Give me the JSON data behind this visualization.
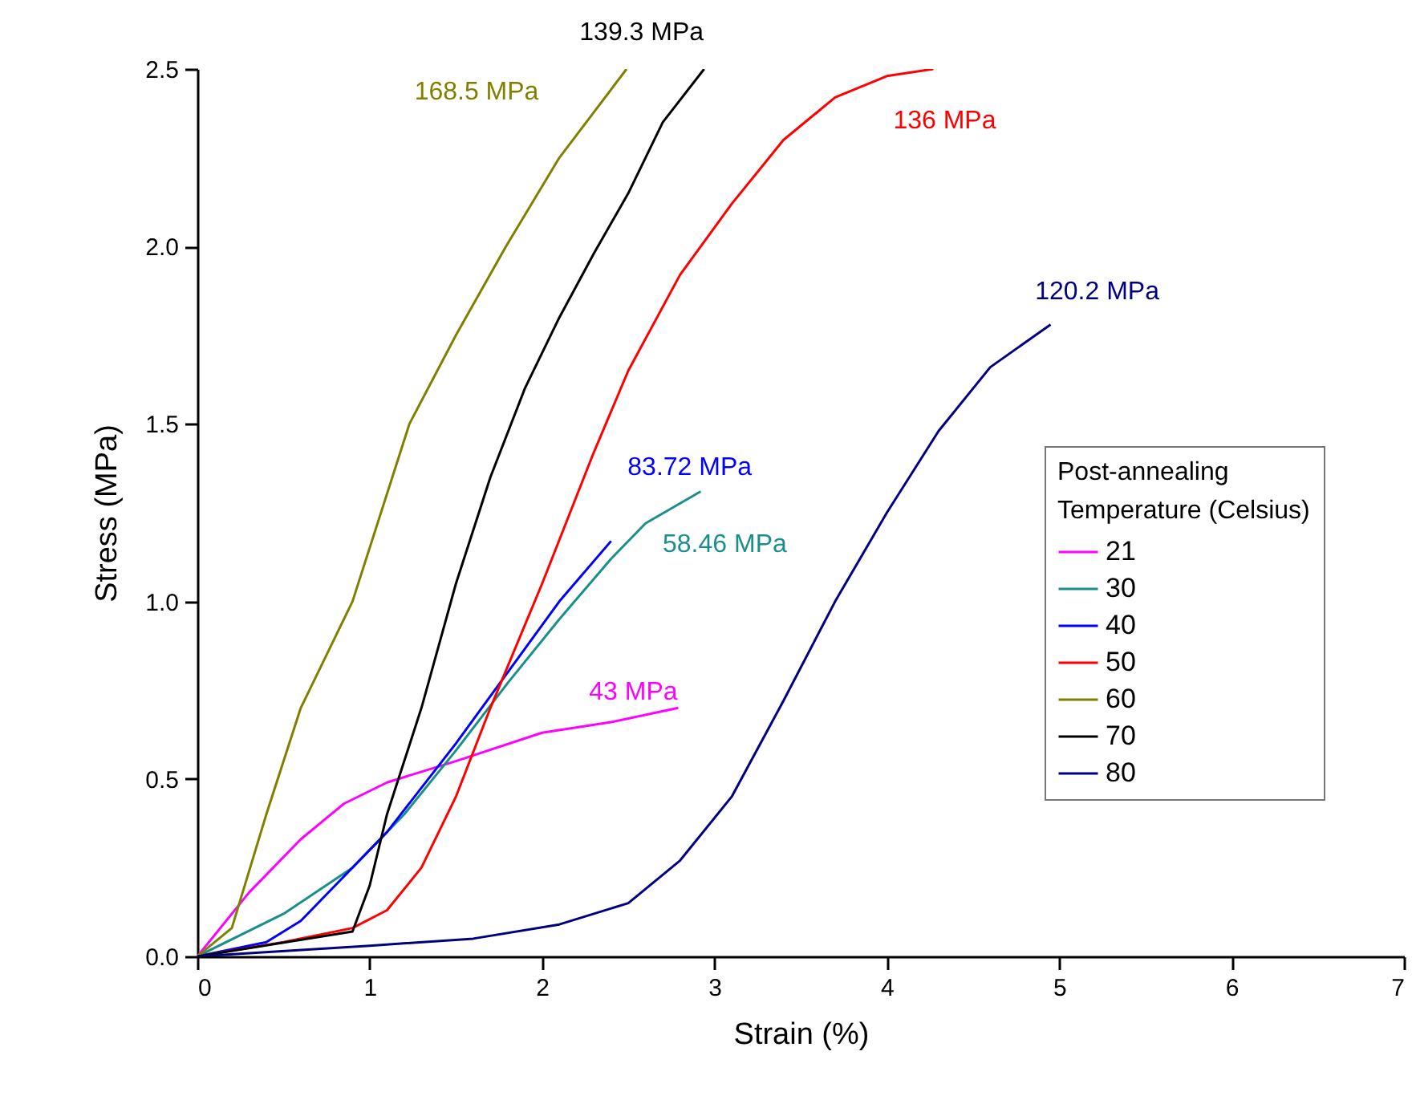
{
  "chart_data": {
    "type": "line",
    "xlabel": "Strain (%)",
    "ylabel": "Stress (MPa)",
    "legend_title": "Post-annealing Temperature (Celsius)",
    "legend": "right",
    "grid": false,
    "marker": "none",
    "line_style": "solid",
    "xlim": [
      0,
      7
    ],
    "xticks": [
      0,
      1,
      2,
      3,
      4,
      5,
      6,
      7
    ],
    "ylim": [
      0,
      2.5
    ],
    "yticks": [
      {
        "value": 0,
        "label": "0.0"
      },
      {
        "value": 0.5,
        "label": "0.5"
      },
      {
        "value": 1,
        "label": "1.0"
      },
      {
        "value": 1.5,
        "label": "1.5"
      },
      {
        "value": 2,
        "label": "2.0"
      },
      {
        "value": 2.5,
        "label": "2.5"
      }
    ],
    "series": [
      {
        "name": "21",
        "color": "#ff00ff",
        "x": [
          0,
          0.3,
          0.6,
          0.85,
          1.1,
          1.5,
          2.0,
          2.4,
          2.79
        ],
        "values": [
          0,
          0.18,
          0.33,
          0.43,
          0.49,
          0.55,
          0.63,
          0.66,
          0.7
        ]
      },
      {
        "name": "30",
        "color": "#1a8f8a",
        "x": [
          0,
          0.5,
          0.9,
          1.2,
          1.5,
          1.8,
          2.1,
          2.4,
          2.6,
          2.92
        ],
        "values": [
          0,
          0.12,
          0.25,
          0.4,
          0.58,
          0.77,
          0.95,
          1.12,
          1.22,
          1.31
        ]
      },
      {
        "name": "40",
        "color": "#0000ff",
        "x": [
          0,
          0.4,
          0.6,
          0.8,
          1.1,
          1.5,
          1.8,
          2.1,
          2.4
        ],
        "values": [
          0,
          0.04,
          0.1,
          0.2,
          0.35,
          0.6,
          0.8,
          1.0,
          1.17
        ]
      },
      {
        "name": "50",
        "color": "#ff0000",
        "x": [
          0,
          0.5,
          0.9,
          1.1,
          1.3,
          1.5,
          1.7,
          2.0,
          2.3,
          2.5,
          2.8,
          3.1,
          3.4,
          3.7,
          4.0,
          4.27
        ],
        "values": [
          0,
          0.04,
          0.08,
          0.13,
          0.25,
          0.45,
          0.7,
          1.05,
          1.42,
          1.65,
          1.92,
          2.12,
          2.3,
          2.42,
          2.48,
          2.5
        ]
      },
      {
        "name": "60",
        "color": "#808000",
        "x": [
          0,
          0.2,
          0.4,
          0.6,
          0.9,
          1.23,
          1.5,
          1.79,
          2.1,
          2.49
        ],
        "values": [
          0,
          0.08,
          0.4,
          0.7,
          1.0,
          1.5,
          1.75,
          2.0,
          2.25,
          2.5
        ]
      },
      {
        "name": "70",
        "color": "#000000",
        "x": [
          0,
          0.9,
          1.0,
          1.1,
          1.3,
          1.5,
          1.7,
          1.9,
          2.1,
          2.3,
          2.5,
          2.7,
          2.94
        ],
        "values": [
          0,
          0.07,
          0.2,
          0.4,
          0.7,
          1.05,
          1.35,
          1.6,
          1.8,
          1.98,
          2.15,
          2.35,
          2.5
        ]
      },
      {
        "name": "80",
        "color": "#000080",
        "x": [
          0,
          1,
          1.6,
          2.1,
          2.5,
          2.8,
          3.1,
          3.4,
          3.7,
          4.0,
          4.3,
          4.6,
          4.95
        ],
        "values": [
          0,
          0.03,
          0.05,
          0.09,
          0.15,
          0.27,
          0.45,
          0.72,
          1.0,
          1.25,
          1.48,
          1.66,
          1.78
        ]
      }
    ],
    "annotations": [
      {
        "text": "43 MPa",
        "x": 2.79,
        "y": 0.7
      },
      {
        "text": "58.46 MPa",
        "x": 2.92,
        "y": 1.31
      },
      {
        "text": "83.72 MPa",
        "x": 2.4,
        "y": 1.17
      },
      {
        "text": "136 MPa",
        "x": 4.27,
        "y": 2.5
      },
      "168.5 MPa",
      {
        "text": "139.3 MPa",
        "x": 2.94,
        "y": 2.5
      },
      {
        "text": "120.2 MPa",
        "x": 4.95,
        "y": 1.78
      }
    ]
  }
}
